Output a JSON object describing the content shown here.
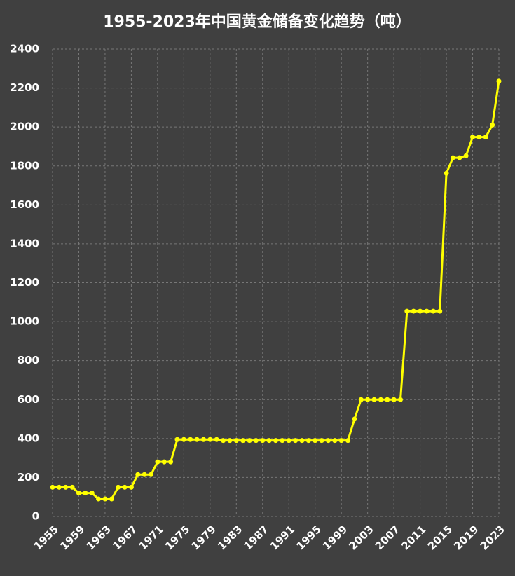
{
  "chart_data": {
    "type": "line",
    "title": "1955-2023年中国黄金储备变化趋势（吨）",
    "x": [
      1955,
      1956,
      1957,
      1958,
      1959,
      1960,
      1961,
      1962,
      1963,
      1964,
      1965,
      1966,
      1967,
      1968,
      1969,
      1970,
      1971,
      1972,
      1973,
      1974,
      1975,
      1976,
      1977,
      1978,
      1979,
      1980,
      1981,
      1982,
      1983,
      1984,
      1985,
      1986,
      1987,
      1988,
      1989,
      1990,
      1991,
      1992,
      1993,
      1994,
      1995,
      1996,
      1997,
      1998,
      1999,
      2000,
      2001,
      2002,
      2003,
      2004,
      2005,
      2006,
      2007,
      2008,
      2009,
      2010,
      2011,
      2012,
      2013,
      2014,
      2015,
      2016,
      2017,
      2018,
      2019,
      2020,
      2021,
      2022,
      2023
    ],
    "series": [
      {
        "name": "黄金储备",
        "color": "#ffff00",
        "values": [
          150,
          150,
          150,
          150,
          120,
          120,
          120,
          90,
          90,
          90,
          150,
          150,
          150,
          215,
          215,
          215,
          280,
          280,
          280,
          395,
          395,
          395,
          395,
          395,
          395,
          395,
          390,
          390,
          390,
          390,
          390,
          390,
          390,
          390,
          390,
          390,
          390,
          390,
          390,
          390,
          390,
          390,
          390,
          390,
          390,
          390,
          500,
          600,
          600,
          600,
          600,
          600,
          600,
          600,
          1054,
          1054,
          1054,
          1054,
          1054,
          1054,
          1762,
          1842,
          1842,
          1852,
          1948,
          1948,
          1948,
          2010,
          2235
        ]
      }
    ],
    "xlim": [
      1955,
      2023
    ],
    "xticks": [
      1955,
      1959,
      1963,
      1967,
      1971,
      1975,
      1979,
      1983,
      1987,
      1991,
      1995,
      1999,
      2003,
      2007,
      2011,
      2015,
      2019,
      2023
    ],
    "ylim": [
      0,
      2400
    ],
    "yticks": [
      0,
      200,
      400,
      600,
      800,
      1000,
      1200,
      1400,
      1600,
      1800,
      2000,
      2200,
      2400
    ],
    "grid": true
  }
}
